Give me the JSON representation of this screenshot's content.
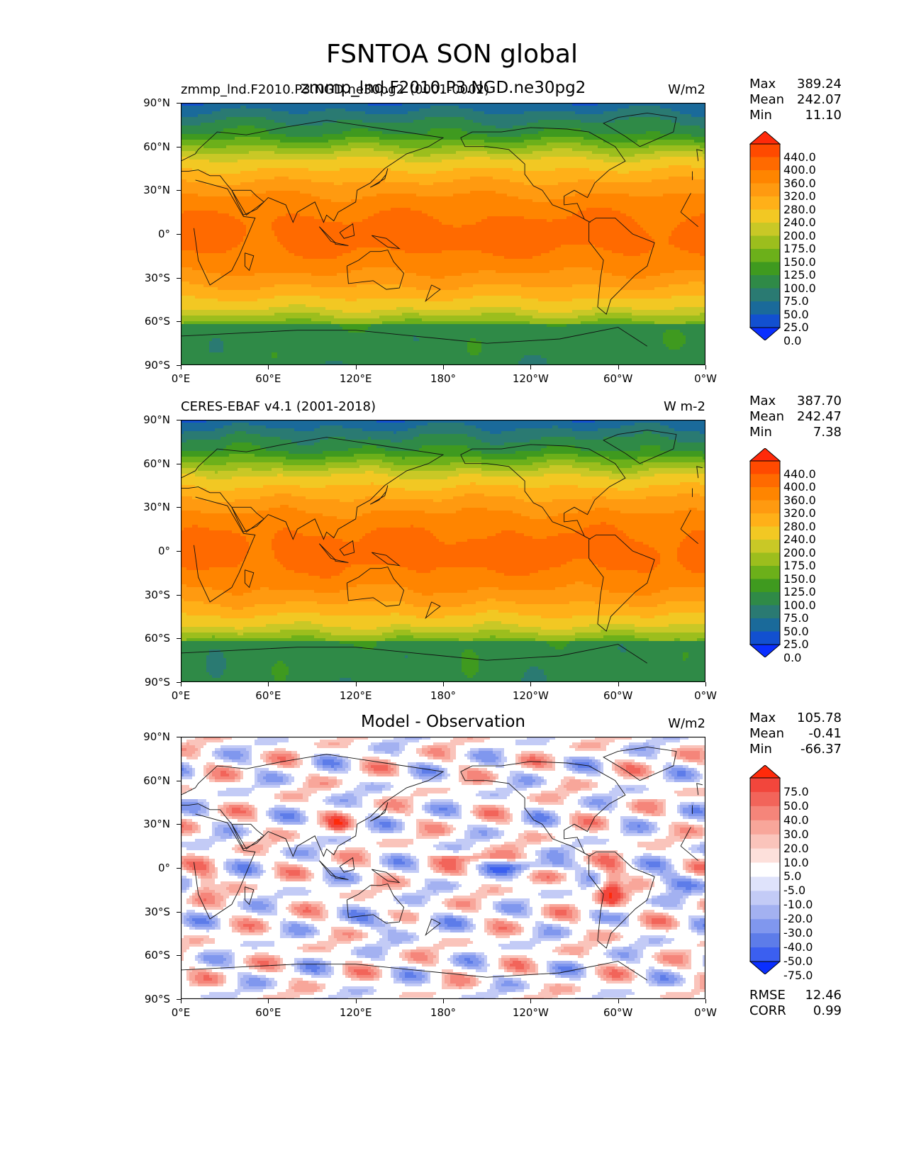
{
  "title": "FSNTOA SON global",
  "panels": [
    {
      "left_title_a": "zmmp_lnd.F2010.P3.NGD.ne30pg2",
      "left_title_b": "(0001-0002)",
      "center_title": "zmmp_lnd.F2010.P3.NGD.ne30pg2",
      "units": "W/m2",
      "stats": {
        "max_label": "Max",
        "max": "389.24",
        "mean_label": "Mean",
        "mean": "242.07",
        "min_label": "Min",
        "min": "11.10"
      },
      "type": "field",
      "variant": "model"
    },
    {
      "left_title_a": "CERES-EBAF v4.1 (2001-2018)",
      "left_title_b": "",
      "center_title": "",
      "units": "W m-2",
      "stats": {
        "max_label": "Max",
        "max": "387.70",
        "mean_label": "Mean",
        "mean": "242.47",
        "min_label": "Min",
        "min": "7.38"
      },
      "type": "field",
      "variant": "obs"
    },
    {
      "left_title_a": "",
      "left_title_b": "",
      "center_title": "Model - Observation",
      "units": "W/m2",
      "stats": {
        "max_label": "Max",
        "max": "105.78",
        "mean_label": "Mean",
        "mean": "-0.41",
        "min_label": "Min",
        "min": "-66.37"
      },
      "extra": {
        "rmse_label": "RMSE",
        "rmse": "12.46",
        "corr_label": "CORR",
        "corr": "0.99"
      },
      "type": "diff"
    }
  ],
  "axes": {
    "lat_ticks": [
      "90°N",
      "60°N",
      "30°N",
      "0°",
      "30°S",
      "60°S",
      "90°S"
    ],
    "lon_ticks": [
      "0°E",
      "60°E",
      "120°E",
      "180°",
      "120°W",
      "60°W",
      "0°W"
    ]
  },
  "colorbars": {
    "field_levels": [
      "440.0",
      "400.0",
      "360.0",
      "320.0",
      "280.0",
      "240.0",
      "200.0",
      "175.0",
      "150.0",
      "125.0",
      "100.0",
      "75.0",
      "50.0",
      "25.0",
      "0.0"
    ],
    "field_colors": [
      "#ff2a0a",
      "#ff4a00",
      "#ff6a00",
      "#ff8500",
      "#ff9a10",
      "#ffb018",
      "#f2c823",
      "#c9c826",
      "#9cbe1d",
      "#6cb01a",
      "#3f9a1f",
      "#2f8a47",
      "#2a7a72",
      "#1a6a9a",
      "#1250d0",
      "#0a2fff"
    ],
    "diff_levels": [
      "75.0",
      "50.0",
      "40.0",
      "30.0",
      "20.0",
      "10.0",
      "5.0",
      "-5.0",
      "-10.0",
      "-20.0",
      "-30.0",
      "-40.0",
      "-50.0",
      "-75.0"
    ],
    "diff_colors": [
      "#ff2a0a",
      "#f2463c",
      "#f2645a",
      "#f5857a",
      "#f8a69a",
      "#fac4bb",
      "#fde0db",
      "#ffffff",
      "#dfe3fb",
      "#c3cbf6",
      "#a3b1f1",
      "#8097ee",
      "#5d7ce9",
      "#3b5ff0",
      "#0a2fff"
    ]
  }
}
